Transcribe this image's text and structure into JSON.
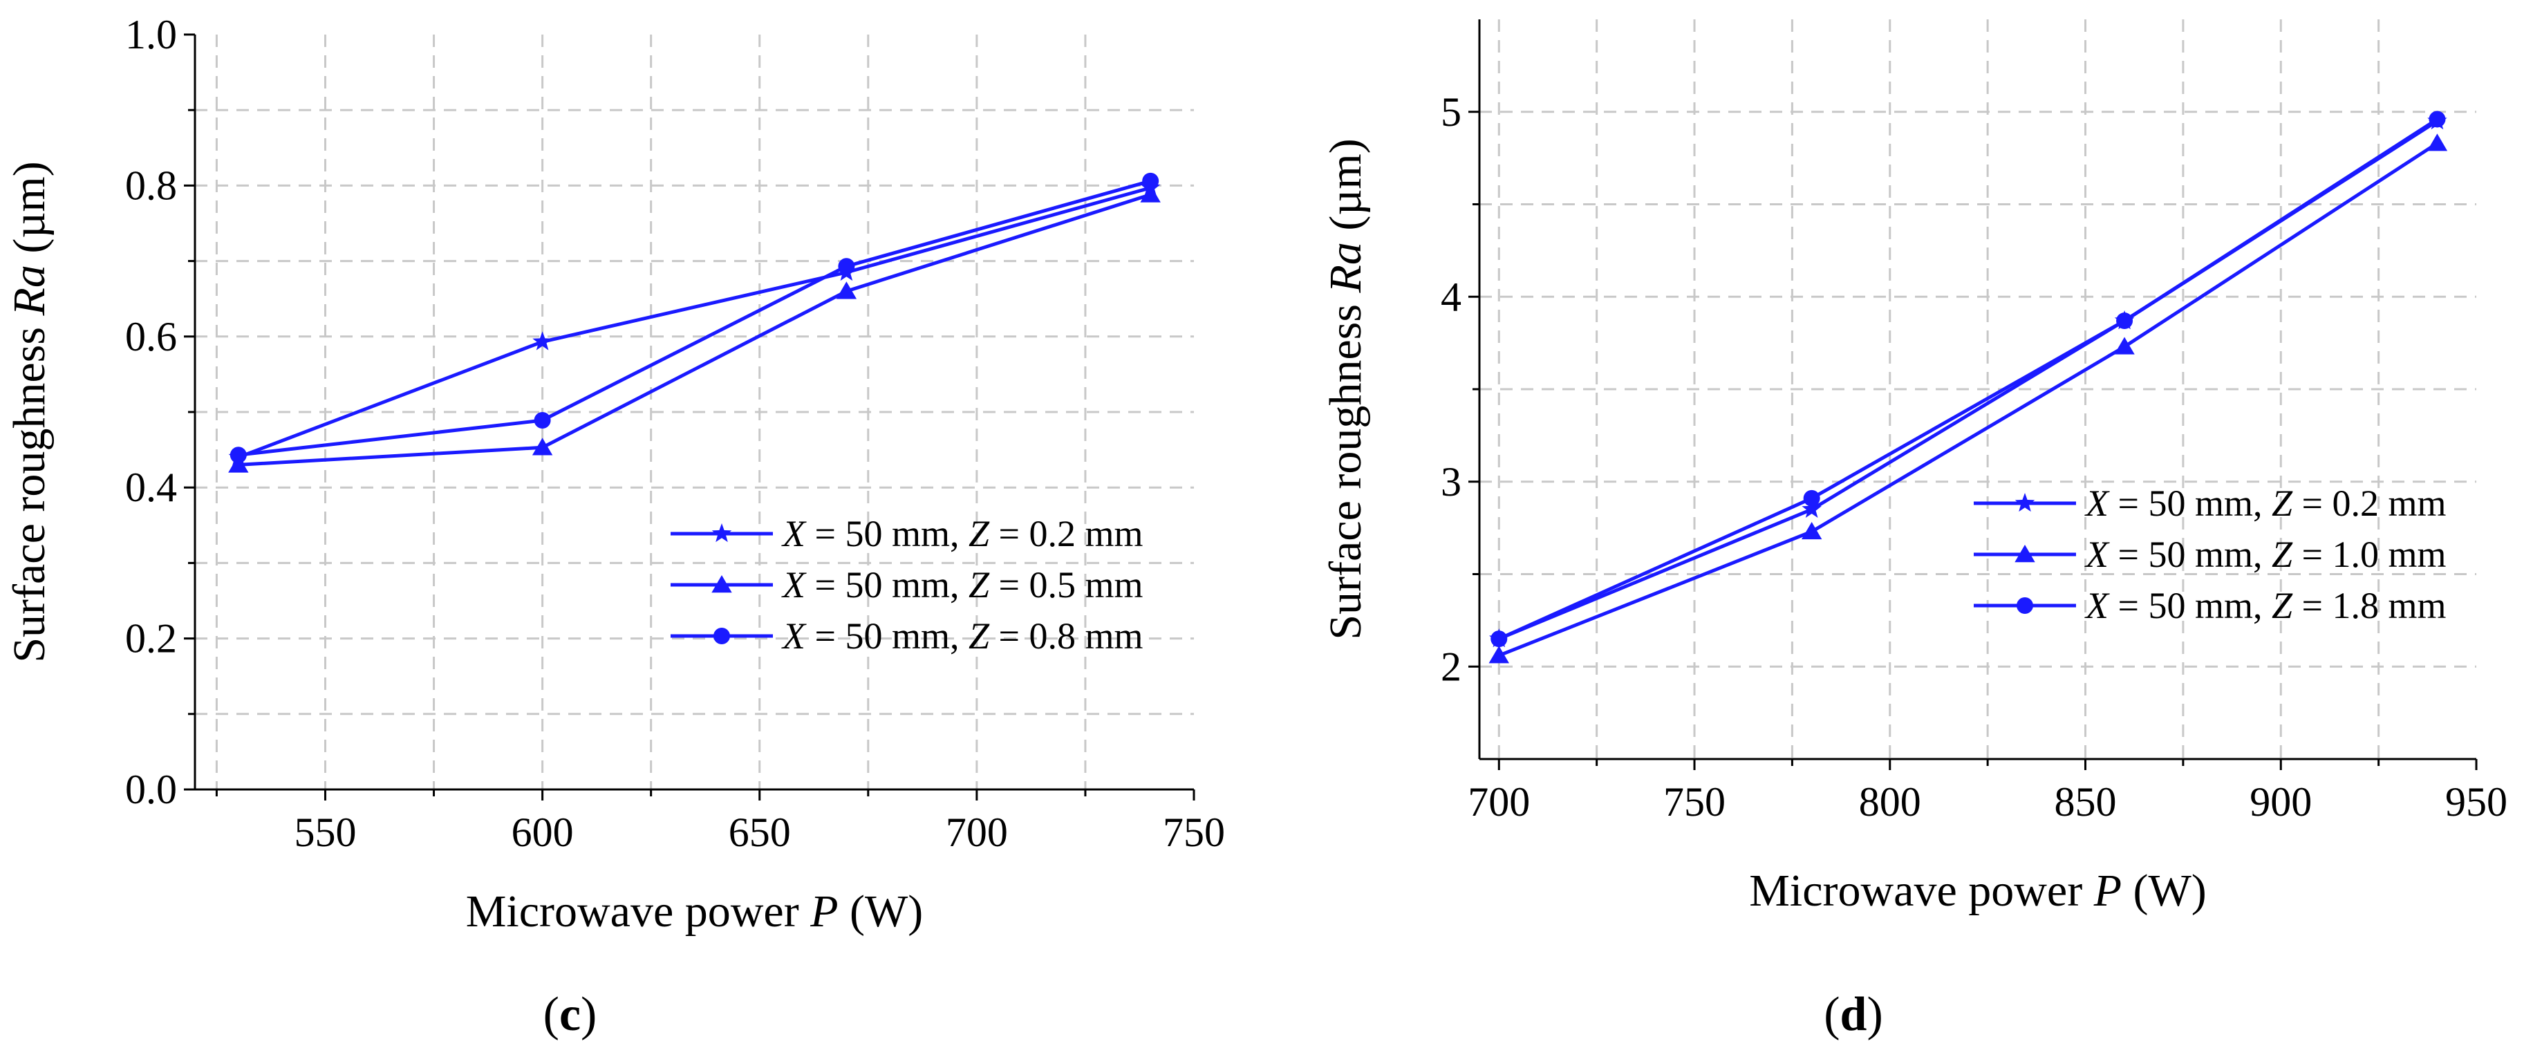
{
  "colors": {
    "series": "#1a1aff",
    "axis": "#000000",
    "grid": "#c8c8c8"
  },
  "chart_data": [
    {
      "type": "line",
      "panel_label": "c",
      "title": "",
      "xlabel": "Microwave power",
      "xlabel_var": "P",
      "xlabel_unit": "(W)",
      "ylabel": "Surface roughness",
      "ylabel_var": "Ra",
      "ylabel_unit": "(µm)",
      "xlim": [
        520,
        750
      ],
      "ylim": [
        0.0,
        1.0
      ],
      "xticks": [
        550,
        600,
        650,
        700,
        750
      ],
      "xtick_labels": [
        "550",
        "600",
        "650",
        "700",
        "750"
      ],
      "yticks": [
        0.0,
        0.2,
        0.4,
        0.6,
        0.8,
        1.0
      ],
      "ytick_labels": [
        "0.0",
        "0.2",
        "0.4",
        "0.6",
        "0.8",
        "1.0"
      ],
      "x": [
        530,
        600,
        670,
        740
      ],
      "legend_position": "lower-right",
      "series": [
        {
          "name": "X = 50 mm, Z = 0.2 mm",
          "z_value": "0.2",
          "marker": "star",
          "values": [
            0.44,
            0.593,
            0.685,
            0.797
          ]
        },
        {
          "name": "X = 50 mm, Z = 0.5 mm",
          "z_value": "0.5",
          "marker": "triangle",
          "values": [
            0.43,
            0.453,
            0.66,
            0.788
          ]
        },
        {
          "name": "X = 50 mm, Z = 0.8 mm",
          "z_value": "0.8",
          "marker": "circle",
          "values": [
            0.443,
            0.489,
            0.693,
            0.806
          ]
        }
      ]
    },
    {
      "type": "line",
      "panel_label": "d",
      "title": "",
      "xlabel": "Microwave power",
      "xlabel_var": "P",
      "xlabel_unit": "(W)",
      "ylabel": "Surface roughness",
      "ylabel_var": "Ra",
      "ylabel_unit": "(µm)",
      "xlim": [
        695,
        950
      ],
      "ylim": [
        1.5,
        5.5
      ],
      "xticks": [
        700,
        750,
        800,
        850,
        900,
        950
      ],
      "xtick_labels": [
        "700",
        "750",
        "800",
        "850",
        "900",
        "950"
      ],
      "yticks": [
        2,
        3,
        4,
        5
      ],
      "ytick_labels": [
        "2",
        "3",
        "4",
        "5"
      ],
      "x": [
        700,
        780,
        860,
        940
      ],
      "legend_position": "center-right",
      "series": [
        {
          "name": "X = 50 mm, Z = 0.2 mm",
          "z_value": "0.2",
          "marker": "star",
          "values": [
            2.15,
            2.85,
            3.87,
            4.95
          ]
        },
        {
          "name": "X = 50 mm, Z = 1.0 mm",
          "z_value": "1.0",
          "marker": "triangle",
          "values": [
            2.06,
            2.73,
            3.73,
            4.83
          ]
        },
        {
          "name": "X = 50 mm, Z = 1.8 mm",
          "z_value": "1.8",
          "marker": "circle",
          "values": [
            2.15,
            2.91,
            3.87,
            4.96
          ]
        }
      ]
    }
  ]
}
